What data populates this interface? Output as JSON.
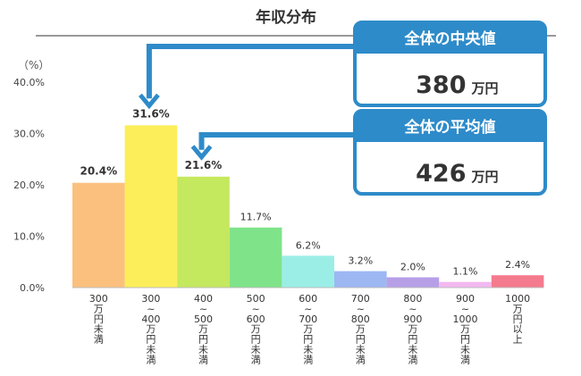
{
  "chart_data": {
    "type": "bar",
    "title": "年収分布",
    "y_unit_label": "（%）",
    "ylim": [
      0,
      40
    ],
    "y_ticks": [
      "40.0%",
      "30.0%",
      "20.0%",
      "10.0%",
      "0.0%"
    ],
    "grid": false,
    "categories": [
      [
        "300",
        "万",
        "円",
        "未",
        "満"
      ],
      [
        "300",
        "~",
        "400",
        "万",
        "円",
        "未",
        "満"
      ],
      [
        "400",
        "~",
        "500",
        "万",
        "円",
        "未",
        "満"
      ],
      [
        "500",
        "~",
        "600",
        "万",
        "円",
        "未",
        "満"
      ],
      [
        "600",
        "~",
        "700",
        "万",
        "円",
        "未",
        "満"
      ],
      [
        "700",
        "~",
        "800",
        "万",
        "円",
        "未",
        "満"
      ],
      [
        "800",
        "~",
        "900",
        "万",
        "円",
        "未",
        "満"
      ],
      [
        "900",
        "~",
        "1000",
        "万",
        "円",
        "未",
        "満"
      ],
      [
        "1000",
        "万",
        "円",
        "以",
        "上"
      ]
    ],
    "values": [
      20.4,
      31.6,
      21.6,
      11.7,
      6.2,
      3.2,
      2.0,
      1.1,
      2.4
    ],
    "value_labels": [
      "20.4%",
      "31.6%",
      "21.6%",
      "11.7%",
      "6.2%",
      "3.2%",
      "2.0%",
      "1.1%",
      "2.4%"
    ],
    "colors": [
      "#fbc07e",
      "#fcee5a",
      "#c4e85e",
      "#7fe38a",
      "#9beee6",
      "#9db7f3",
      "#b79fe8",
      "#f3b8f0",
      "#f47a8e"
    ],
    "highlight_color": "#2e8bc9",
    "callouts": [
      {
        "heading": "全体の中央値",
        "value": "380",
        "unit": "万円",
        "points_to_bar": 1
      },
      {
        "heading": "全体の平均値",
        "value": "426",
        "unit": "万円",
        "points_to_bar": 2
      }
    ]
  }
}
